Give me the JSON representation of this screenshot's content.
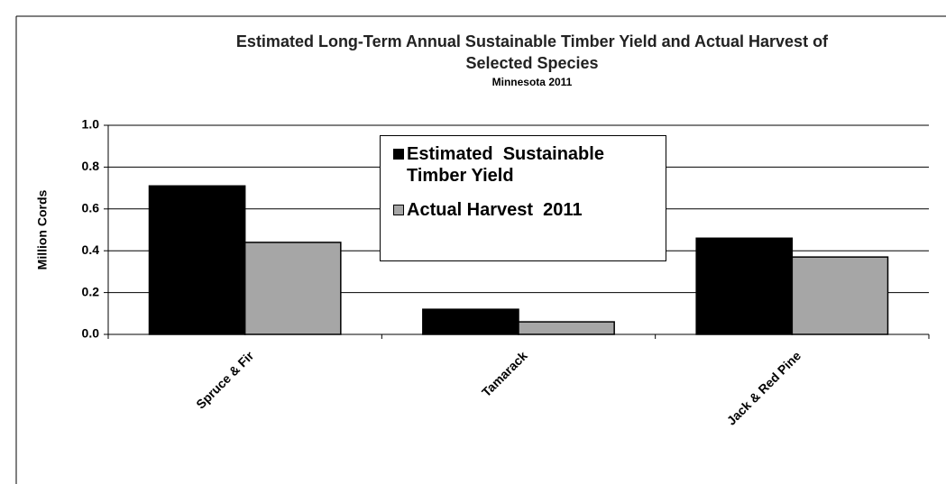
{
  "chart_data": {
    "type": "bar",
    "title": "Estimated Long-Term Annual Sustainable Timber Yield and Actual Harvest of Selected Species",
    "subtitle": "Minnesota 2011",
    "y_label": "Million Cords",
    "categories": [
      "Spruce & Fir",
      "Tamarack",
      "Jack & Red Pine"
    ],
    "series": [
      {
        "name": "Estimated  Sustainable Timber Yield",
        "color": "#000000",
        "values": [
          0.71,
          0.12,
          0.46
        ]
      },
      {
        "name": "Actual Harvest  2011",
        "color": "#a6a6a6",
        "values": [
          0.44,
          0.06,
          0.37
        ]
      }
    ],
    "ylim": [
      0,
      1
    ],
    "yticks": [
      {
        "value": 0,
        "label": "0.0"
      },
      0.2,
      0.4,
      0.6,
      0.8,
      {
        "value": 1,
        "label": "1.0"
      }
    ],
    "grid": true
  }
}
